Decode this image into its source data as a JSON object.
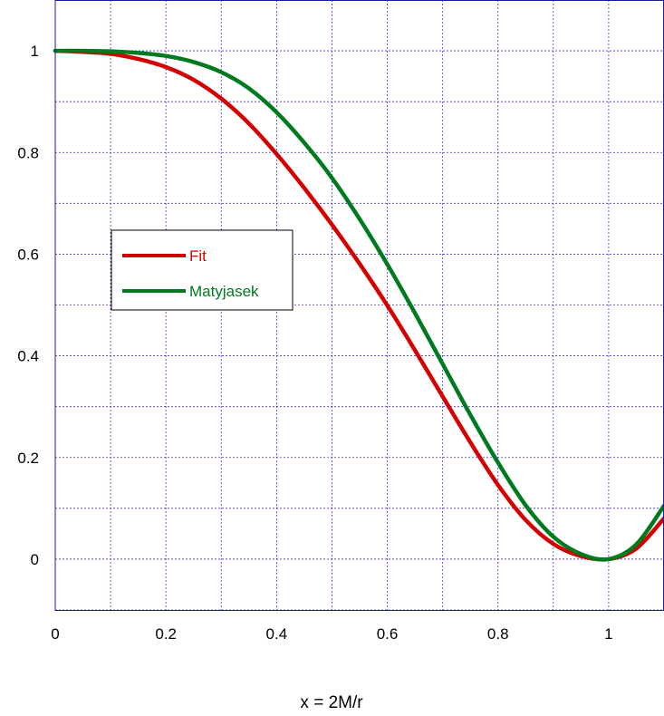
{
  "chart_data": {
    "type": "line",
    "xlabel": "x = 2M/r",
    "ylabel": "",
    "xlim": [
      0,
      1.1
    ],
    "ylim": [
      -0.1,
      1.1
    ],
    "x_ticks": [
      "0",
      "0.2",
      "0.4",
      "0.6",
      "0.8",
      "1"
    ],
    "y_ticks": [
      "0",
      "0.2",
      "0.4",
      "0.6",
      "0.8",
      "1"
    ],
    "grid": true,
    "legend_position": "left-center",
    "series": [
      {
        "name": "Fit",
        "color": "#d40000",
        "x": [
          0,
          0.05,
          0.1,
          0.15,
          0.2,
          0.25,
          0.3,
          0.35,
          0.4,
          0.45,
          0.5,
          0.55,
          0.6,
          0.65,
          0.7,
          0.75,
          0.8,
          0.85,
          0.9,
          0.95,
          1.0,
          1.05,
          1.1
        ],
        "y": [
          1.0,
          0.998,
          0.994,
          0.984,
          0.968,
          0.943,
          0.906,
          0.857,
          0.797,
          0.73,
          0.658,
          0.581,
          0.499,
          0.411,
          0.32,
          0.23,
          0.146,
          0.077,
          0.03,
          0.006,
          0.0,
          0.021,
          0.08
        ]
      },
      {
        "name": "Matyjasek",
        "color": "#007a1f",
        "x": [
          0,
          0.05,
          0.1,
          0.15,
          0.2,
          0.25,
          0.3,
          0.35,
          0.4,
          0.45,
          0.5,
          0.55,
          0.6,
          0.65,
          0.7,
          0.75,
          0.8,
          0.85,
          0.9,
          0.95,
          1.0,
          1.05,
          1.1
        ],
        "y": [
          1.0,
          1.0,
          0.999,
          0.996,
          0.99,
          0.978,
          0.958,
          0.926,
          0.879,
          0.819,
          0.75,
          0.669,
          0.58,
          0.484,
          0.384,
          0.284,
          0.19,
          0.106,
          0.044,
          0.01,
          0.0,
          0.029,
          0.105
        ]
      }
    ]
  }
}
